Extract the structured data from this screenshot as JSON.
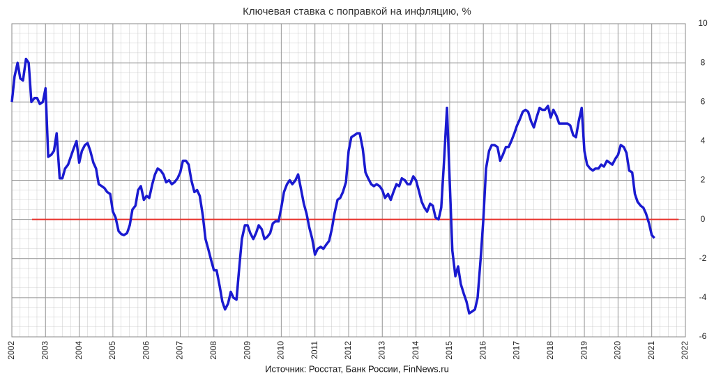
{
  "chart_data": {
    "type": "line",
    "title": "Ключевая ставка с поправкой на инфляцию, %",
    "source": "Источник: Росстат, Банк России, FinNews.ru",
    "xlim": [
      2002,
      2022
    ],
    "xticks": [
      2002,
      2003,
      2004,
      2005,
      2006,
      2007,
      2008,
      2009,
      2010,
      2011,
      2012,
      2013,
      2014,
      2015,
      2016,
      2017,
      2018,
      2019,
      2020,
      2021,
      2022
    ],
    "ylim": [
      -6,
      10
    ],
    "yticks": [
      -6,
      -4,
      -2,
      0,
      2,
      4,
      6,
      8,
      10
    ],
    "grid": true,
    "minor_grid": {
      "x": 0.25,
      "y": 0.5
    },
    "reference_line": {
      "y": 0,
      "x": [
        2002.6,
        2021.8
      ],
      "color": "#e8302a"
    },
    "series": [
      {
        "color": "#1a1ad0",
        "x": [
          2002,
          2002.08,
          2002.17,
          2002.25,
          2002.33,
          2002.42,
          2002.5,
          2002.58,
          2002.67,
          2002.75,
          2002.83,
          2002.92,
          2003,
          2003.08,
          2003.17,
          2003.25,
          2003.33,
          2003.42,
          2003.5,
          2003.58,
          2003.67,
          2003.75,
          2003.83,
          2003.92,
          2004,
          2004.08,
          2004.17,
          2004.25,
          2004.33,
          2004.42,
          2004.5,
          2004.58,
          2004.67,
          2004.75,
          2004.83,
          2004.92,
          2005,
          2005.08,
          2005.17,
          2005.25,
          2005.33,
          2005.42,
          2005.5,
          2005.58,
          2005.67,
          2005.75,
          2005.83,
          2005.92,
          2006,
          2006.08,
          2006.17,
          2006.25,
          2006.33,
          2006.42,
          2006.5,
          2006.58,
          2006.67,
          2006.75,
          2006.83,
          2006.92,
          2007,
          2007.08,
          2007.17,
          2007.25,
          2007.33,
          2007.42,
          2007.5,
          2007.58,
          2007.67,
          2007.75,
          2007.83,
          2007.92,
          2008,
          2008.08,
          2008.17,
          2008.25,
          2008.33,
          2008.42,
          2008.5,
          2008.58,
          2008.67,
          2008.75,
          2008.83,
          2008.92,
          2009,
          2009.08,
          2009.17,
          2009.25,
          2009.33,
          2009.42,
          2009.5,
          2009.58,
          2009.67,
          2009.75,
          2009.83,
          2009.92,
          2010,
          2010.08,
          2010.17,
          2010.25,
          2010.33,
          2010.42,
          2010.5,
          2010.58,
          2010.67,
          2010.75,
          2010.83,
          2010.92,
          2011,
          2011.08,
          2011.17,
          2011.25,
          2011.33,
          2011.42,
          2011.5,
          2011.58,
          2011.67,
          2011.75,
          2011.83,
          2011.92,
          2012,
          2012.08,
          2012.17,
          2012.25,
          2012.33,
          2012.42,
          2012.5,
          2012.58,
          2012.67,
          2012.75,
          2012.83,
          2012.92,
          2013,
          2013.08,
          2013.17,
          2013.25,
          2013.33,
          2013.42,
          2013.5,
          2013.58,
          2013.67,
          2013.75,
          2013.83,
          2013.92,
          2014,
          2014.08,
          2014.17,
          2014.25,
          2014.33,
          2014.42,
          2014.5,
          2014.58,
          2014.67,
          2014.75,
          2014.83,
          2014.92,
          2015,
          2015.08,
          2015.17,
          2015.25,
          2015.33,
          2015.42,
          2015.5,
          2015.58,
          2015.67,
          2015.75,
          2015.83,
          2015.92,
          2016,
          2016.08,
          2016.17,
          2016.25,
          2016.33,
          2016.42,
          2016.5,
          2016.58,
          2016.67,
          2016.75,
          2016.83,
          2016.92,
          2017,
          2017.08,
          2017.17,
          2017.25,
          2017.33,
          2017.42,
          2017.5,
          2017.58,
          2017.67,
          2017.75,
          2017.83,
          2017.92,
          2018,
          2018.08,
          2018.17,
          2018.25,
          2018.33,
          2018.42,
          2018.5,
          2018.58,
          2018.67,
          2018.75,
          2018.83,
          2018.92,
          2019,
          2019.08,
          2019.17,
          2019.25,
          2019.33,
          2019.42,
          2019.5,
          2019.58,
          2019.67,
          2019.75,
          2019.83,
          2019.92,
          2020,
          2020.08,
          2020.17,
          2020.25,
          2020.33,
          2020.42,
          2020.5,
          2020.58,
          2020.67,
          2020.75,
          2020.83,
          2020.92,
          2021,
          2021.08
        ],
        "values": [
          6.0,
          7.3,
          8.0,
          7.2,
          7.1,
          8.2,
          8.0,
          6.0,
          6.2,
          6.2,
          5.9,
          6.0,
          6.7,
          3.2,
          3.3,
          3.5,
          4.4,
          2.1,
          2.1,
          2.6,
          2.8,
          3.2,
          3.6,
          4.0,
          2.9,
          3.5,
          3.8,
          3.9,
          3.5,
          2.9,
          2.6,
          1.8,
          1.7,
          1.6,
          1.4,
          1.3,
          0.4,
          0.1,
          -0.6,
          -0.75,
          -0.8,
          -0.7,
          -0.3,
          0.5,
          0.7,
          1.5,
          1.7,
          1.0,
          1.2,
          1.1,
          1.8,
          2.3,
          2.6,
          2.5,
          2.3,
          1.9,
          2.0,
          1.8,
          1.9,
          2.1,
          2.4,
          3.0,
          3.0,
          2.8,
          2.0,
          1.4,
          1.5,
          1.2,
          0.2,
          -1.0,
          -1.5,
          -2.1,
          -2.6,
          -2.6,
          -3.4,
          -4.2,
          -4.6,
          -4.3,
          -3.7,
          -4.0,
          -4.1,
          -2.5,
          -1.0,
          -0.3,
          -0.3,
          -0.7,
          -1.0,
          -0.7,
          -0.3,
          -0.5,
          -1.0,
          -0.9,
          -0.7,
          -0.2,
          -0.1,
          -0.1,
          0.6,
          1.4,
          1.8,
          2.0,
          1.8,
          2.0,
          2.3,
          1.6,
          0.8,
          0.3,
          -0.4,
          -1.0,
          -1.8,
          -1.5,
          -1.4,
          -1.5,
          -1.3,
          -1.1,
          -0.5,
          0.3,
          1.0,
          1.1,
          1.4,
          1.9,
          3.5,
          4.2,
          4.3,
          4.4,
          4.4,
          3.6,
          2.4,
          2.1,
          1.8,
          1.7,
          1.8,
          1.7,
          1.5,
          1.1,
          1.3,
          1.0,
          1.4,
          1.8,
          1.7,
          2.1,
          2.0,
          1.8,
          1.8,
          2.2,
          2.0,
          1.5,
          0.9,
          0.6,
          0.4,
          0.8,
          0.7,
          0.1,
          0.0,
          0.6,
          2.9,
          5.7,
          2.0,
          -1.6,
          -2.9,
          -2.4,
          -3.3,
          -3.8,
          -4.2,
          -4.8,
          -4.7,
          -4.6,
          -4.0,
          -2.0,
          0.0,
          2.6,
          3.5,
          3.8,
          3.8,
          3.7,
          3.0,
          3.3,
          3.7,
          3.7,
          4.0,
          4.4,
          4.8,
          5.1,
          5.5,
          5.6,
          5.5,
          5.0,
          4.7,
          5.2,
          5.7,
          5.6,
          5.6,
          5.8,
          5.2,
          5.6,
          5.3,
          4.9,
          4.9,
          4.9,
          4.9,
          4.8,
          4.3,
          4.2,
          5.0,
          5.7,
          3.5,
          2.8,
          2.6,
          2.5,
          2.6,
          2.6,
          2.8,
          2.7,
          3.0,
          2.9,
          2.8,
          3.1,
          3.3,
          3.8,
          3.7,
          3.4,
          2.5,
          2.4,
          1.3,
          0.9,
          0.7,
          0.6,
          0.3,
          -0.2,
          -0.8,
          -0.95
        ]
      }
    ]
  }
}
